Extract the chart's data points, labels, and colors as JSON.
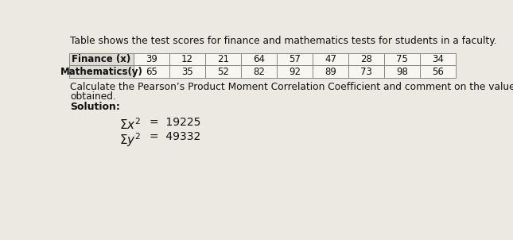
{
  "title": "Table shows the test scores for finance and mathematics tests for students in a faculty.",
  "row1_header": "Finance (x)",
  "row2_header": "Mathematics(y)",
  "row1_values": [
    "39",
    "12",
    "21",
    "64",
    "57",
    "47",
    "28",
    "75",
    "34"
  ],
  "row2_values": [
    "65",
    "35",
    "52",
    "82",
    "92",
    "89",
    "73",
    "98",
    "56"
  ],
  "paragraph_line1": "Calculate the Pearson’s Product Moment Correlation Coefficient and comment on the value",
  "paragraph_line2": "obtained.",
  "solution_label": "Solution:",
  "eq1_prefix": "Σx",
  "eq1_rhs": "=  19225",
  "eq2_prefix": "Σy",
  "eq2_rhs": "=  49332",
  "bg_color": "#ece9e2",
  "table_bg": "#f8f6f0",
  "header_bg": "#dddbd4",
  "text_color": "#111111",
  "border_color": "#888880"
}
